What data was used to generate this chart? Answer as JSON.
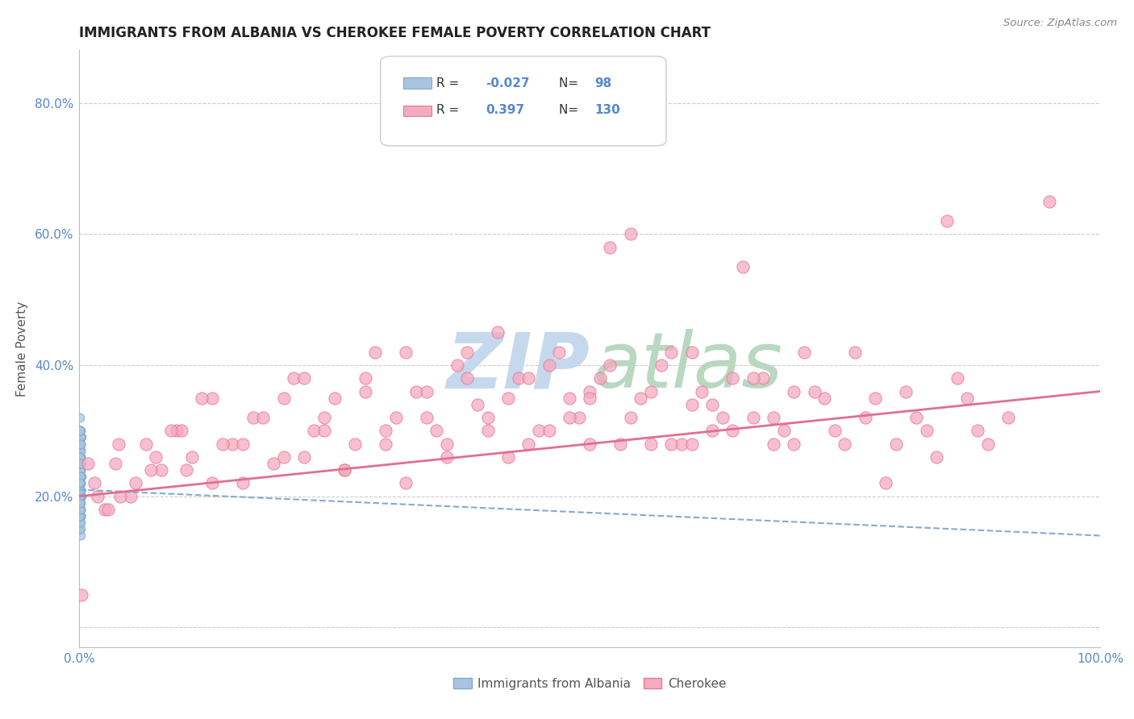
{
  "title": "IMMIGRANTS FROM ALBANIA VS CHEROKEE FEMALE POVERTY CORRELATION CHART",
  "source_text": "Source: ZipAtlas.com",
  "ylabel": "Female Poverty",
  "xlim": [
    0.0,
    1.0
  ],
  "ylim": [
    -0.03,
    0.88
  ],
  "x_ticks": [
    0.0,
    0.1,
    0.2,
    0.3,
    0.4,
    0.5,
    0.6,
    0.7,
    0.8,
    0.9,
    1.0
  ],
  "x_tick_labels": [
    "0.0%",
    "",
    "",
    "",
    "",
    "",
    "",
    "",
    "",
    "",
    "100.0%"
  ],
  "y_ticks": [
    0.0,
    0.2,
    0.4,
    0.6,
    0.8
  ],
  "y_tick_labels": [
    "",
    "20.0%",
    "40.0%",
    "60.0%",
    "80.0%"
  ],
  "legend_r_albania": "-0.027",
  "legend_n_albania": "98",
  "legend_r_cherokee": "0.397",
  "legend_n_cherokee": "130",
  "albania_color": "#aac4e0",
  "cherokee_color": "#f5aabf",
  "albania_edge_color": "#7aaad0",
  "cherokee_edge_color": "#e87898",
  "albania_line_color": "#88aacc",
  "cherokee_line_color": "#e07090",
  "watermark_zip_color": "#c5d8ee",
  "watermark_atlas_color": "#b8d8c0",
  "grid_color": "#cccccc",
  "title_color": "#222222",
  "axis_label_color": "#555555",
  "tick_label_color": "#5588cc",
  "legend_text_color": "#5588cc",
  "legend_r_label_color": "#333333",
  "source_color": "#888888",
  "albania_scatter_x": [
    0.0002,
    0.0005,
    0.0008,
    0.001,
    0.0003,
    0.0007,
    0.0012,
    0.0004,
    0.0009,
    0.0015,
    0.0006,
    0.001,
    0.002,
    0.0003,
    0.0008,
    0.0013,
    0.0005,
    0.001,
    0.0018,
    0.0007,
    0.0004,
    0.0009,
    0.0014,
    0.0002,
    0.0006,
    0.0011,
    0.0016,
    0.0003,
    0.0008,
    0.0013,
    0.0005,
    0.001,
    0.0017,
    0.0004,
    0.0009,
    0.0002,
    0.0007,
    0.0012,
    0.0003,
    0.0008,
    0.0013,
    0.0005,
    0.001,
    0.0006,
    0.0011,
    0.0004,
    0.0009,
    0.0014,
    0.0002,
    0.0007,
    0.0012,
    0.0003,
    0.0008,
    0.0005,
    0.001,
    0.0015,
    0.0004,
    0.0009,
    0.0002,
    0.0007,
    0.0012,
    0.0003,
    0.0008,
    0.0013,
    0.0005,
    0.001,
    0.0006,
    0.0011,
    0.0004,
    0.0009,
    0.0014,
    0.0002,
    0.0007,
    0.0012,
    0.0003,
    0.0008,
    0.0005,
    0.001,
    0.0015,
    0.0004,
    0.0009,
    0.0002,
    0.0007,
    0.0003,
    0.0008,
    0.0005,
    0.001,
    0.0006,
    0.0011,
    0.0004,
    0.0009,
    0.0002,
    0.0007,
    0.0012,
    0.0003,
    0.0008,
    0.0005,
    0.001
  ],
  "albania_scatter_y": [
    0.22,
    0.18,
    0.25,
    0.2,
    0.15,
    0.28,
    0.21,
    0.3,
    0.17,
    0.24,
    0.26,
    0.19,
    0.23,
    0.32,
    0.16,
    0.27,
    0.22,
    0.14,
    0.29,
    0.2,
    0.24,
    0.18,
    0.26,
    0.21,
    0.3,
    0.17,
    0.25,
    0.22,
    0.19,
    0.28,
    0.15,
    0.23,
    0.2,
    0.27,
    0.18,
    0.24,
    0.21,
    0.29,
    0.16,
    0.26,
    0.22,
    0.19,
    0.25,
    0.2,
    0.28,
    0.17,
    0.23,
    0.21,
    0.3,
    0.18,
    0.26,
    0.22,
    0.19,
    0.25,
    0.15,
    0.29,
    0.2,
    0.24,
    0.22,
    0.18,
    0.27,
    0.21,
    0.24,
    0.17,
    0.25,
    0.2,
    0.28,
    0.16,
    0.23,
    0.21,
    0.3,
    0.18,
    0.26,
    0.22,
    0.19,
    0.25,
    0.2,
    0.28,
    0.17,
    0.23,
    0.21,
    0.3,
    0.18,
    0.26,
    0.22,
    0.19,
    0.25,
    0.2,
    0.28,
    0.17,
    0.23,
    0.21,
    0.3,
    0.18,
    0.26,
    0.22,
    0.19,
    0.25
  ],
  "cherokee_scatter_x": [
    0.002,
    0.015,
    0.025,
    0.035,
    0.05,
    0.065,
    0.08,
    0.095,
    0.11,
    0.13,
    0.15,
    0.17,
    0.19,
    0.21,
    0.23,
    0.25,
    0.27,
    0.29,
    0.31,
    0.33,
    0.35,
    0.37,
    0.39,
    0.41,
    0.43,
    0.45,
    0.47,
    0.49,
    0.51,
    0.53,
    0.55,
    0.57,
    0.59,
    0.61,
    0.63,
    0.65,
    0.67,
    0.69,
    0.71,
    0.73,
    0.75,
    0.77,
    0.79,
    0.81,
    0.83,
    0.85,
    0.87,
    0.89,
    0.91,
    0.95,
    0.04,
    0.07,
    0.1,
    0.13,
    0.16,
    0.2,
    0.22,
    0.24,
    0.26,
    0.28,
    0.3,
    0.32,
    0.34,
    0.36,
    0.38,
    0.4,
    0.42,
    0.44,
    0.46,
    0.48,
    0.5,
    0.52,
    0.54,
    0.56,
    0.58,
    0.6,
    0.62,
    0.64,
    0.66,
    0.68,
    0.7,
    0.72,
    0.74,
    0.76,
    0.78,
    0.8,
    0.82,
    0.84,
    0.86,
    0.88,
    0.008,
    0.018,
    0.028,
    0.038,
    0.055,
    0.075,
    0.09,
    0.105,
    0.12,
    0.14,
    0.16,
    0.18,
    0.2,
    0.22,
    0.24,
    0.26,
    0.28,
    0.3,
    0.32,
    0.34,
    0.36,
    0.38,
    0.4,
    0.42,
    0.44,
    0.46,
    0.48,
    0.5,
    0.52,
    0.54,
    0.56,
    0.58,
    0.6,
    0.62,
    0.64,
    0.66,
    0.68,
    0.7,
    0.5,
    0.6
  ],
  "cherokee_scatter_y": [
    0.05,
    0.22,
    0.18,
    0.25,
    0.2,
    0.28,
    0.24,
    0.3,
    0.26,
    0.35,
    0.28,
    0.32,
    0.25,
    0.38,
    0.3,
    0.35,
    0.28,
    0.42,
    0.32,
    0.36,
    0.3,
    0.4,
    0.34,
    0.45,
    0.38,
    0.3,
    0.42,
    0.32,
    0.38,
    0.28,
    0.35,
    0.4,
    0.28,
    0.36,
    0.32,
    0.55,
    0.38,
    0.3,
    0.42,
    0.35,
    0.28,
    0.32,
    0.22,
    0.36,
    0.3,
    0.62,
    0.35,
    0.28,
    0.32,
    0.65,
    0.2,
    0.24,
    0.3,
    0.22,
    0.28,
    0.35,
    0.26,
    0.32,
    0.24,
    0.38,
    0.3,
    0.22,
    0.36,
    0.28,
    0.42,
    0.32,
    0.26,
    0.38,
    0.3,
    0.35,
    0.28,
    0.4,
    0.32,
    0.36,
    0.28,
    0.42,
    0.34,
    0.3,
    0.38,
    0.32,
    0.28,
    0.36,
    0.3,
    0.42,
    0.35,
    0.28,
    0.32,
    0.26,
    0.38,
    0.3,
    0.25,
    0.2,
    0.18,
    0.28,
    0.22,
    0.26,
    0.3,
    0.24,
    0.35,
    0.28,
    0.22,
    0.32,
    0.26,
    0.38,
    0.3,
    0.24,
    0.36,
    0.28,
    0.42,
    0.32,
    0.26,
    0.38,
    0.3,
    0.35,
    0.28,
    0.4,
    0.32,
    0.36,
    0.58,
    0.6,
    0.28,
    0.42,
    0.34,
    0.3,
    0.38,
    0.32,
    0.28,
    0.36,
    0.35,
    0.28
  ],
  "albania_trend_x": [
    0.0,
    1.0
  ],
  "albania_trend_y": [
    0.21,
    0.14
  ],
  "cherokee_trend_x": [
    0.0,
    1.0
  ],
  "cherokee_trend_y": [
    0.2,
    0.36
  ]
}
